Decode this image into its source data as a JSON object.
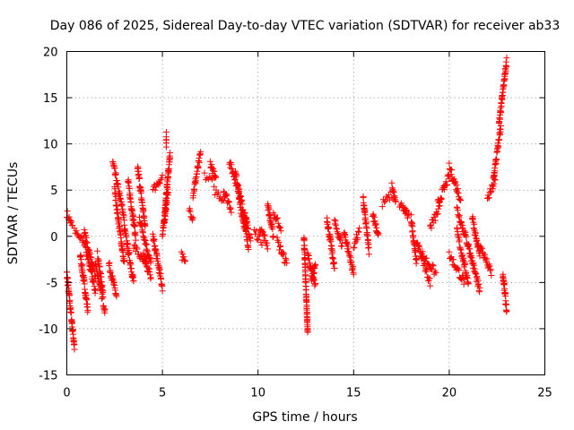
{
  "chart_data": {
    "type": "scatter",
    "title": "Day 086 of 2025, Sidereal Day-to-day VTEC variation (SDTVAR) for receiver ab33",
    "xlabel": "GPS time / hours",
    "ylabel": "SDTVAR / TECUs",
    "xlim": [
      0,
      25
    ],
    "ylim": [
      -15,
      20
    ],
    "x_ticks": [
      0,
      5,
      10,
      15,
      20,
      25
    ],
    "y_ticks": [
      -15,
      -10,
      -5,
      0,
      5,
      10,
      15,
      20
    ],
    "x_tick_labels": [
      "0",
      "5",
      "10",
      "15",
      "20",
      "25"
    ],
    "y_tick_labels": [
      "-15",
      "-10",
      "-5",
      "0",
      "5",
      "10",
      "15",
      "20"
    ],
    "grid": true,
    "marker": "+",
    "color": "#ff0000",
    "series": [
      {
        "name": "SDTVAR",
        "segments": [
          [
            0.0,
            2.5,
            0.3,
            1.0
          ],
          [
            0.0,
            -4.0,
            0.4,
            -12.0
          ],
          [
            0.4,
            0.5,
            1.0,
            -1.0
          ],
          [
            0.7,
            -2.0,
            1.1,
            -8.0
          ],
          [
            0.9,
            0.5,
            1.5,
            -4.5
          ],
          [
            1.0,
            -1.5,
            1.5,
            -6.0
          ],
          [
            1.5,
            -3.0,
            2.0,
            -8.0
          ],
          [
            1.6,
            -2.0,
            1.9,
            -6.0
          ],
          [
            2.2,
            -3.0,
            2.6,
            -6.5
          ],
          [
            2.4,
            8.0,
            3.0,
            2.0
          ],
          [
            2.5,
            5.0,
            3.0,
            -3.0
          ],
          [
            3.0,
            1.0,
            3.5,
            -5.0
          ],
          [
            3.2,
            6.0,
            3.6,
            0.0
          ],
          [
            3.5,
            -1.0,
            4.2,
            -3.5
          ],
          [
            3.7,
            7.5,
            4.1,
            1.0
          ],
          [
            3.8,
            2.0,
            4.4,
            -3.0
          ],
          [
            4.0,
            -2.0,
            4.4,
            -4.5
          ],
          [
            4.5,
            0.0,
            5.0,
            -5.5
          ],
          [
            4.5,
            5.0,
            5.0,
            6.5
          ],
          [
            5.0,
            0.0,
            5.3,
            5.0
          ],
          [
            5.1,
            2.0,
            5.4,
            9.0
          ],
          [
            5.2,
            11.0,
            5.2,
            10.0
          ],
          [
            6.0,
            -2.0,
            6.2,
            -3.0
          ],
          [
            6.4,
            3.0,
            6.6,
            2.0
          ],
          [
            6.6,
            4.5,
            7.0,
            9.0
          ],
          [
            7.2,
            6.5,
            7.6,
            6.0
          ],
          [
            7.5,
            8.0,
            7.8,
            6.0
          ],
          [
            7.7,
            5.0,
            8.2,
            4.0
          ],
          [
            8.2,
            5.0,
            8.6,
            3.0
          ],
          [
            8.5,
            8.0,
            9.0,
            5.0
          ],
          [
            8.8,
            7.0,
            9.4,
            1.0
          ],
          [
            9.0,
            4.0,
            9.5,
            -1.0
          ],
          [
            9.3,
            2.5,
            9.6,
            -0.5
          ],
          [
            9.8,
            0.5,
            10.2,
            -0.5
          ],
          [
            10.1,
            1.0,
            10.5,
            -1.0
          ],
          [
            10.5,
            3.5,
            10.8,
            0.0
          ],
          [
            10.8,
            2.5,
            11.2,
            1.0
          ],
          [
            11.0,
            -0.5,
            11.5,
            -3.0
          ],
          [
            12.4,
            0.0,
            12.6,
            -10.5
          ],
          [
            12.6,
            -2.0,
            13.0,
            -5.5
          ],
          [
            12.8,
            -5.0,
            13.0,
            -3.0
          ],
          [
            13.6,
            2.0,
            14.0,
            -3.5
          ],
          [
            14.0,
            1.5,
            14.4,
            -1.0
          ],
          [
            14.5,
            0.5,
            15.0,
            -4.0
          ],
          [
            15.0,
            -1.0,
            15.3,
            0.5
          ],
          [
            15.5,
            4.0,
            15.8,
            -1.5
          ],
          [
            16.0,
            2.5,
            16.3,
            0.0
          ],
          [
            16.5,
            3.5,
            17.0,
            4.5
          ],
          [
            17.0,
            5.5,
            17.2,
            3.5
          ],
          [
            17.4,
            3.5,
            17.8,
            2.5
          ],
          [
            17.6,
            3.0,
            17.9,
            2.0
          ],
          [
            18.0,
            2.0,
            18.3,
            -3.0
          ],
          [
            18.3,
            -0.5,
            19.0,
            -5.0
          ],
          [
            18.6,
            -2.0,
            19.3,
            -4.0
          ],
          [
            19.0,
            1.0,
            19.5,
            3.0
          ],
          [
            19.4,
            3.5,
            20.0,
            6.5
          ],
          [
            20.0,
            7.5,
            20.6,
            4.0
          ],
          [
            20.4,
            3.0,
            21.0,
            -1.0
          ],
          [
            20.0,
            -2.0,
            20.8,
            -5.0
          ],
          [
            20.4,
            0.5,
            21.0,
            -5.0
          ],
          [
            21.0,
            -1.0,
            21.6,
            -6.0
          ],
          [
            21.2,
            2.0,
            21.6,
            -2.0
          ],
          [
            21.6,
            -1.0,
            22.2,
            -4.0
          ],
          [
            22.0,
            4.0,
            22.4,
            6.0
          ],
          [
            22.3,
            6.0,
            22.7,
            12.0
          ],
          [
            22.6,
            12.0,
            23.0,
            19.0
          ],
          [
            22.8,
            -4.0,
            23.0,
            -8.0
          ]
        ]
      }
    ]
  }
}
